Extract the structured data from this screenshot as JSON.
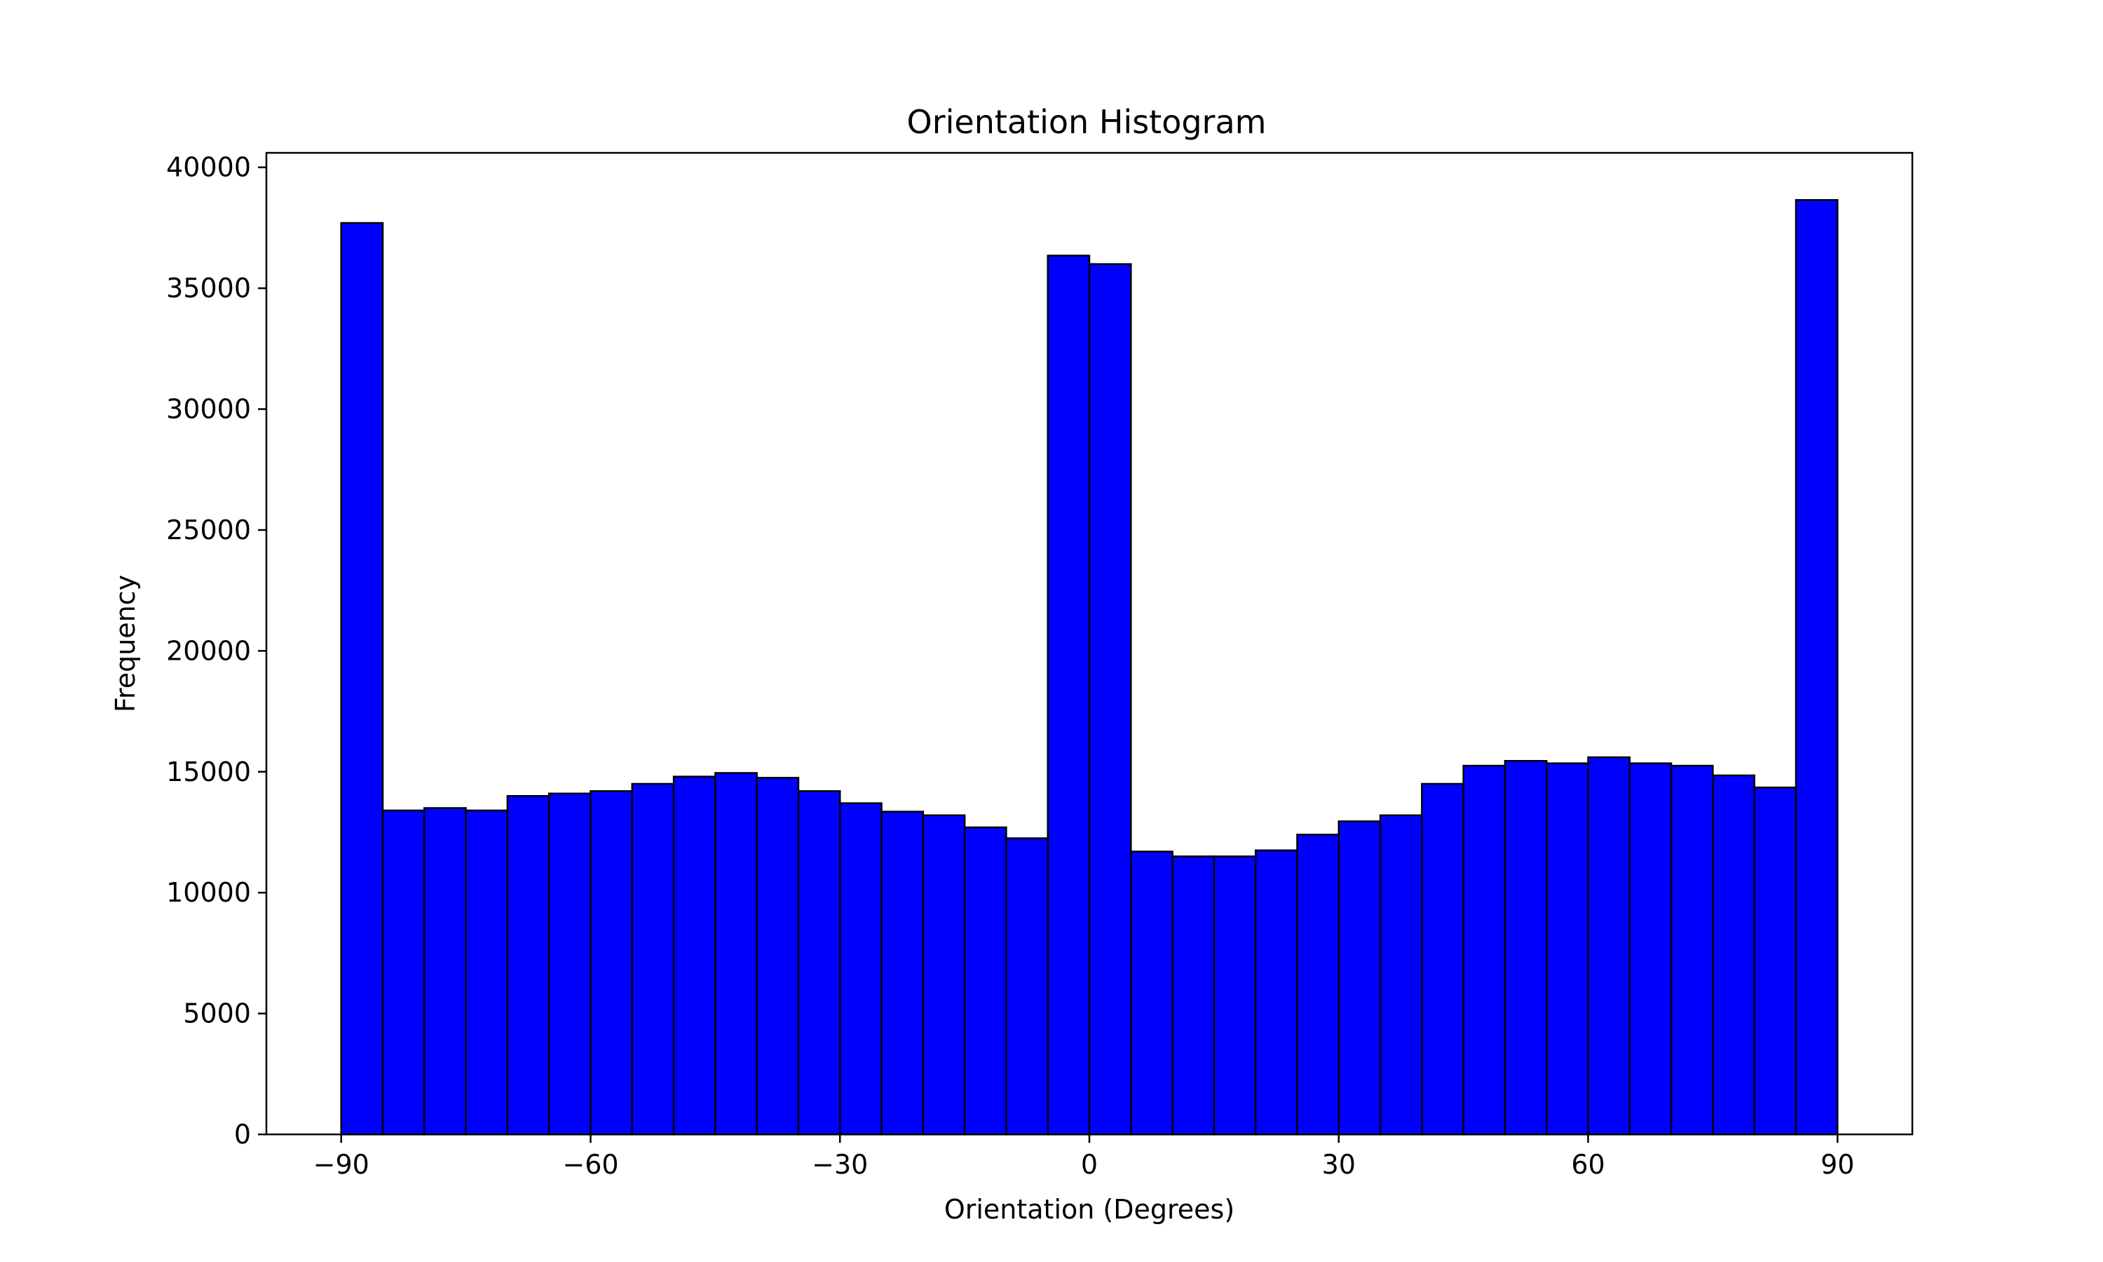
{
  "chart_data": {
    "type": "bar",
    "title": "Orientation Histogram",
    "xlabel": "Orientation (Degrees)",
    "ylabel": "Frequency",
    "xlim": [
      -99,
      99
    ],
    "ylim": [
      0,
      40600
    ],
    "xticks": [
      -90,
      -60,
      -30,
      0,
      30,
      60,
      90
    ],
    "xtick_labels": [
      "−90",
      "−60",
      "−30",
      "0",
      "30",
      "60",
      "90"
    ],
    "yticks": [
      0,
      5000,
      10000,
      15000,
      20000,
      25000,
      30000,
      35000,
      40000
    ],
    "ytick_labels": [
      "0",
      "5000",
      "10000",
      "15000",
      "20000",
      "25000",
      "30000",
      "35000",
      "40000"
    ],
    "bin_edges": [
      -90,
      -85,
      -80,
      -75,
      -70,
      -65,
      -60,
      -55,
      -50,
      -45,
      -40,
      -35,
      -30,
      -25,
      -20,
      -15,
      -10,
      -5,
      0,
      5,
      10,
      15,
      20,
      25,
      30,
      35,
      40,
      45,
      50,
      55,
      60,
      65,
      70,
      75,
      80,
      85,
      90
    ],
    "values": [
      37700,
      13400,
      13500,
      13400,
      14000,
      14100,
      14200,
      14500,
      14800,
      14950,
      14750,
      14200,
      13700,
      13350,
      13200,
      12700,
      12250,
      36350,
      36000,
      11700,
      11500,
      11500,
      11750,
      12400,
      12950,
      13200,
      14500,
      15250,
      15450,
      15350,
      15600,
      15350,
      15250,
      14850,
      14350,
      38650
    ],
    "bar_color": "#0000ff",
    "edge_color": "#000000",
    "grid": false,
    "legend": "none"
  }
}
